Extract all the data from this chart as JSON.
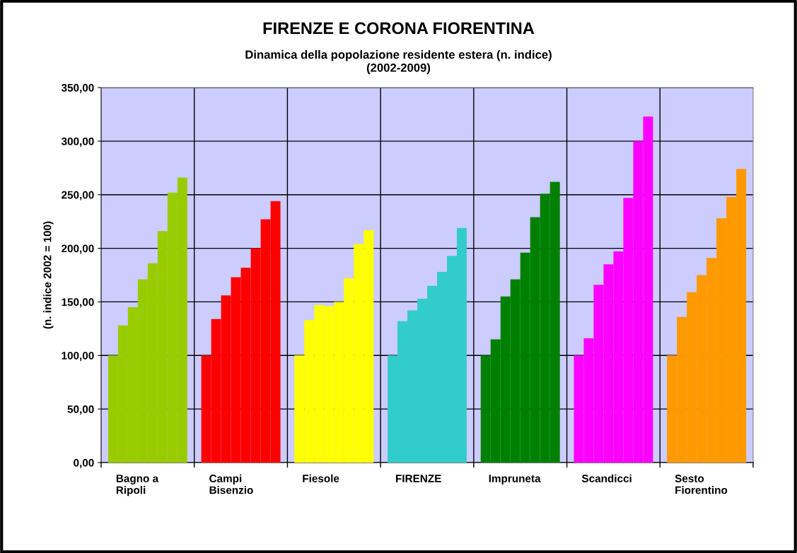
{
  "chart_data": {
    "type": "bar",
    "title": "FIRENZE E CORONA FIORENTINA",
    "subtitle": "Dinamica della popolazione residente estera (n. indice)\n(2002-2009)",
    "ylabel": "(n. indice 2002 = 100)",
    "categories": [
      "Bagno a\nRipoli",
      "Campi\nBisenzio",
      "Fiesole",
      "FIRENZE",
      "Impruneta",
      "Scandicci",
      "Sesto\nFiorentino"
    ],
    "series": [
      {
        "colors": [
          "#99cc00",
          "#ff0000",
          "#ffff00",
          "#33cccc",
          "#008000",
          "#ff00ff",
          "#ff9900"
        ],
        "values": [
          100,
          100,
          100,
          100,
          100,
          100,
          100
        ]
      },
      {
        "colors": [
          "#99cc00",
          "#ff0000",
          "#ffff00",
          "#33cccc",
          "#008000",
          "#ff00ff",
          "#ff9900"
        ],
        "values": [
          128,
          134,
          133,
          132,
          115,
          116,
          136
        ]
      },
      {
        "colors": [
          "#99cc00",
          "#ff0000",
          "#ffff00",
          "#33cccc",
          "#008000",
          "#ff00ff",
          "#ff9900"
        ],
        "values": [
          145,
          156,
          147,
          142,
          155,
          166,
          159
        ]
      },
      {
        "colors": [
          "#99cc00",
          "#ff0000",
          "#ffff00",
          "#33cccc",
          "#008000",
          "#ff00ff",
          "#ff9900"
        ],
        "values": [
          171,
          173,
          146,
          153,
          171,
          185,
          175
        ]
      },
      {
        "colors": [
          "#99cc00",
          "#ff0000",
          "#ffff00",
          "#33cccc",
          "#008000",
          "#ff00ff",
          "#ff9900"
        ],
        "values": [
          186,
          182,
          150,
          165,
          196,
          197,
          191
        ]
      },
      {
        "colors": [
          "#99cc00",
          "#ff0000",
          "#ffff00",
          "#33cccc",
          "#008000",
          "#ff00ff",
          "#ff9900"
        ],
        "values": [
          216,
          200,
          172,
          178,
          229,
          247,
          228
        ]
      },
      {
        "colors": [
          "#99cc00",
          "#ff0000",
          "#ffff00",
          "#33cccc",
          "#008000",
          "#ff00ff",
          "#ff9900"
        ],
        "values": [
          252,
          227,
          204,
          193,
          251,
          300,
          248
        ]
      },
      {
        "colors": [
          "#99cc00",
          "#ff0000",
          "#ffff00",
          "#33cccc",
          "#008000",
          "#ff00ff",
          "#ff9900"
        ],
        "values": [
          266,
          244,
          217,
          219,
          262,
          323,
          274
        ]
      }
    ],
    "ylim": [
      0,
      350
    ],
    "yticks": [
      {
        "value": 0,
        "label": "0,00"
      },
      {
        "value": 50,
        "label": "50,00"
      },
      {
        "value": 100,
        "label": "100,00"
      },
      {
        "value": 150,
        "label": "150,00"
      },
      {
        "value": 200,
        "label": "200,00"
      },
      {
        "value": 250,
        "label": "250,00"
      },
      {
        "value": 300,
        "label": "300,00"
      },
      {
        "value": 350,
        "label": "350,00"
      }
    ],
    "grid": true,
    "legend": false
  }
}
